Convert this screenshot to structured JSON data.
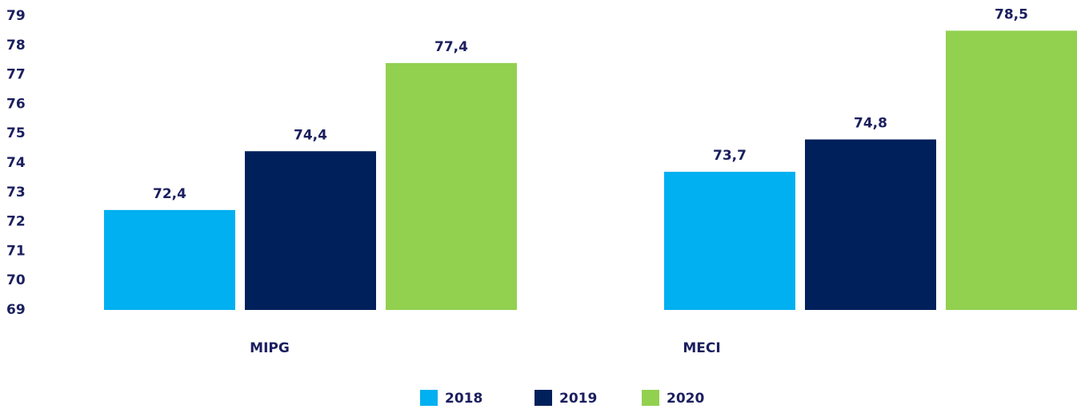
{
  "chart_data": {
    "type": "bar",
    "categories": [
      "MIPG",
      "MECI"
    ],
    "series": [
      {
        "name": "2018",
        "color": "#00b0f0",
        "values": [
          72.4,
          73.7
        ],
        "value_labels": [
          "72,4",
          "73,7"
        ]
      },
      {
        "name": "2019",
        "color": "#00205b",
        "values": [
          74.4,
          74.8
        ],
        "value_labels": [
          "74,4",
          "74,8"
        ]
      },
      {
        "name": "2020",
        "color": "#92d050",
        "values": [
          77.4,
          78.5
        ],
        "value_labels": [
          "77,4",
          "78,5"
        ]
      }
    ],
    "ylim": [
      69,
      79
    ],
    "yticks": [
      69,
      70,
      71,
      72,
      73,
      74,
      75,
      76,
      77,
      78,
      79
    ],
    "grid": false,
    "legend": "bottom"
  }
}
